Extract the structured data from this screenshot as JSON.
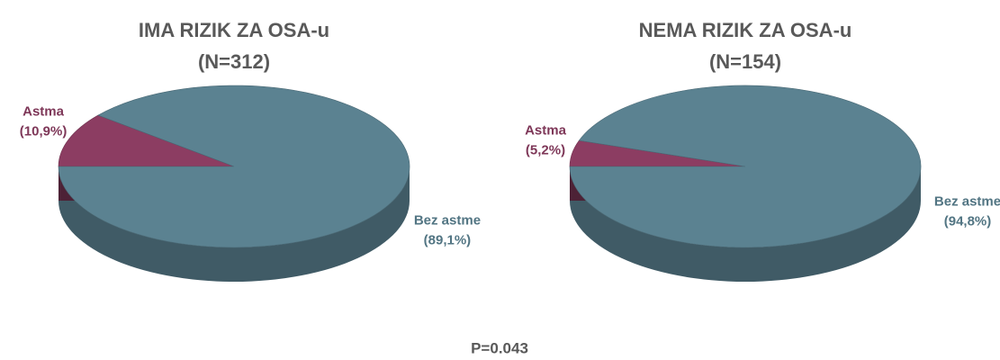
{
  "chart_data": [
    {
      "type": "pie",
      "title": "IMA RIZIK ZA OSA-u",
      "subtitle": "(N=312)",
      "categories": [
        "Astma",
        "Bez astme"
      ],
      "values": [
        10.9,
        89.1
      ],
      "value_labels": [
        "(10,9%)",
        "(89,1%)"
      ],
      "colors": [
        "#8c3d62",
        "#5b8291"
      ]
    },
    {
      "type": "pie",
      "title": "NEMA RIZIK ZA OSA-u",
      "subtitle": "(N=154)",
      "categories": [
        "Astma",
        "Bez astme"
      ],
      "values": [
        5.2,
        94.8
      ],
      "value_labels": [
        "(5,2%)",
        "(94,8%)"
      ],
      "colors": [
        "#8c3d62",
        "#5b8291"
      ]
    }
  ],
  "annotation": "P=0.043"
}
